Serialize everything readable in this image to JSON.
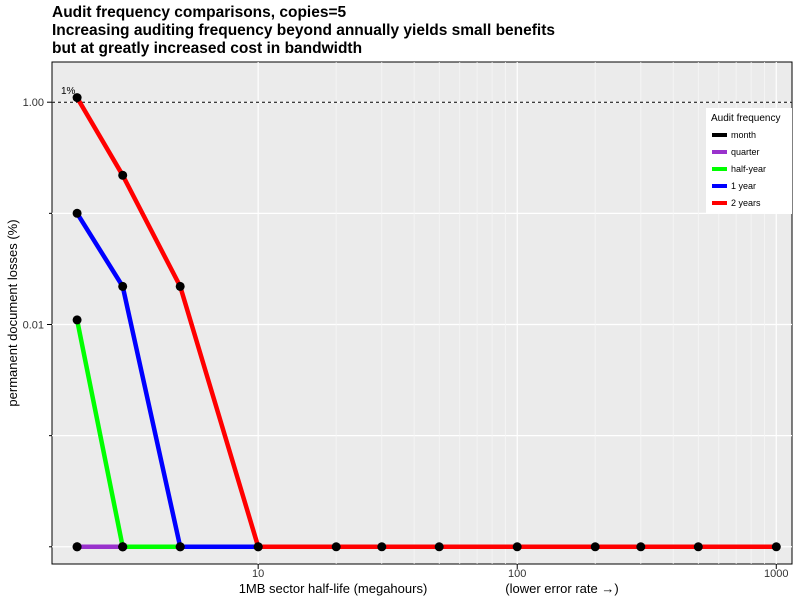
{
  "chart_data": {
    "type": "line",
    "title_lines": [
      "Audit frequency comparisons, copies=5",
      "Increasing auditing frequency beyond annually yields small benefits",
      "but at greatly increased cost in bandwidth"
    ],
    "xlabel": "1MB sector half-life (megahours)",
    "xlabel2": "(lower error rate →)",
    "ylabel": "permanent document losses (%)",
    "x_scale": "log",
    "y_scale": "log",
    "xlim": [
      1.6,
      1150
    ],
    "ylim": [
      7e-05,
      2.3
    ],
    "x_ticks": [
      {
        "value": 10,
        "label": "10"
      },
      {
        "value": 100,
        "label": "100"
      },
      {
        "value": 1000,
        "label": "1000"
      }
    ],
    "y_ticks": [
      {
        "value": 1,
        "label": "1.00"
      },
      {
        "value": 0.01,
        "label": "0.01"
      }
    ],
    "reference_line": {
      "y": 1,
      "label": "1%"
    },
    "grid": true,
    "legend": {
      "title": "Audit frequency",
      "placement": "top-right"
    },
    "series": [
      {
        "name": "month",
        "color": "#000000",
        "points": [
          [
            2,
            0.0001
          ],
          [
            3,
            0.0001
          ]
        ]
      },
      {
        "name": "quarter",
        "color": "#9932cc",
        "points": [
          [
            2,
            0.0001
          ],
          [
            3,
            0.0001
          ]
        ]
      },
      {
        "name": "half-year",
        "color": "#00ff00",
        "points": [
          [
            2,
            0.011
          ],
          [
            3,
            0.0001
          ],
          [
            5,
            0.0001
          ]
        ]
      },
      {
        "name": "1 year",
        "color": "#0000ff",
        "points": [
          [
            2,
            0.1
          ],
          [
            3,
            0.022
          ],
          [
            5,
            0.0001
          ],
          [
            10,
            0.0001
          ]
        ]
      },
      {
        "name": "2 years",
        "color": "#ff0000",
        "points": [
          [
            2,
            1.1
          ],
          [
            3,
            0.22
          ],
          [
            5,
            0.022
          ],
          [
            10,
            0.0001
          ],
          [
            20,
            0.0001
          ],
          [
            30,
            0.0001
          ],
          [
            50,
            0.0001
          ],
          [
            100,
            0.0001
          ],
          [
            200,
            0.0001
          ],
          [
            300,
            0.0001
          ],
          [
            500,
            0.0001
          ],
          [
            1000,
            0.0001
          ]
        ]
      }
    ]
  }
}
